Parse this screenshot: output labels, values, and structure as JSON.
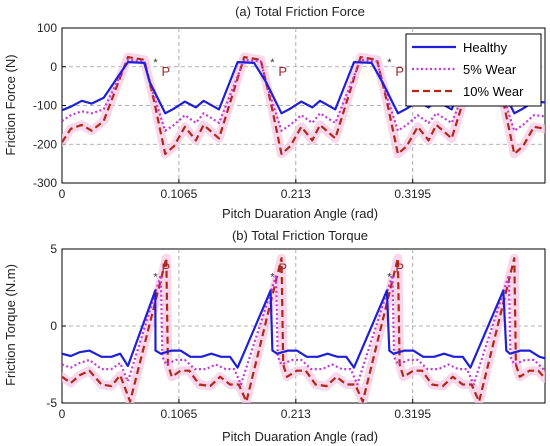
{
  "chart_data": [
    {
      "type": "line",
      "title": "(a) Total Friction Force",
      "xlabel": "Pitch Duaration Angle (rad)",
      "ylabel": "Friction Force (N)",
      "xlim": [
        0,
        0.44
      ],
      "ylim": [
        -300,
        100
      ],
      "x_ticks": [
        0,
        0.1065,
        0.213,
        0.3195
      ],
      "x_tick_labels": [
        "0",
        "0.1065",
        "0.213",
        "0.3195"
      ],
      "y_ticks": [
        100,
        0,
        -100,
        -200,
        -300
      ],
      "y_tick_labels": [
        "100",
        "0",
        "-100",
        "-200",
        "-300"
      ],
      "grid": true,
      "legend": "top-right",
      "markers": [
        {
          "label": "P",
          "x": 0.0852,
          "y": 12
        },
        {
          "label": "P",
          "x": 0.1917,
          "y": 12
        },
        {
          "label": "P",
          "x": 0.2982,
          "y": 12
        }
      ],
      "series": [
        {
          "name": "Healthy",
          "color": "#1f1fd6",
          "style": "solid",
          "x": [
            0,
            0.008,
            0.018,
            0.027,
            0.038,
            0.06,
            0.075,
            0.08,
            0.094,
            0.102,
            0.112,
            0.122,
            0.129,
            0.143,
            0.16,
            0.175,
            0.186,
            0.2,
            0.208,
            0.218,
            0.228,
            0.235,
            0.249,
            0.266,
            0.282,
            0.292,
            0.306,
            0.314,
            0.324,
            0.334,
            0.341,
            0.355,
            0.372,
            0.388,
            0.398,
            0.412,
            0.42,
            0.43,
            0.44
          ],
          "y": [
            -112,
            -103,
            -88,
            -95,
            -80,
            12,
            10,
            -40,
            -120,
            -108,
            -90,
            -105,
            -88,
            -110,
            12,
            10,
            -40,
            -120,
            -108,
            -90,
            -105,
            -88,
            -110,
            12,
            10,
            -40,
            -120,
            -108,
            -90,
            -105,
            -88,
            -110,
            12,
            10,
            -40,
            -120,
            -108,
            -90,
            -92
          ]
        },
        {
          "name": "5% Wear",
          "color": "#c43ad6",
          "style": "dotted",
          "x": [
            0,
            0.008,
            0.018,
            0.027,
            0.038,
            0.06,
            0.075,
            0.082,
            0.094,
            0.102,
            0.112,
            0.122,
            0.129,
            0.143,
            0.166,
            0.181,
            0.188,
            0.2,
            0.208,
            0.218,
            0.228,
            0.235,
            0.249,
            0.272,
            0.287,
            0.294,
            0.306,
            0.314,
            0.324,
            0.334,
            0.341,
            0.355,
            0.378,
            0.393,
            0.4,
            0.412,
            0.42,
            0.43,
            0.44
          ],
          "y": [
            -140,
            -125,
            -115,
            -120,
            -110,
            18,
            14,
            -60,
            -165,
            -150,
            -125,
            -145,
            -120,
            -145,
            18,
            14,
            -60,
            -165,
            -150,
            -125,
            -145,
            -120,
            -145,
            18,
            14,
            -60,
            -165,
            -150,
            -125,
            -145,
            -120,
            -145,
            18,
            14,
            -60,
            -165,
            -150,
            -125,
            -128
          ]
        },
        {
          "name": "10% Wear",
          "color": "#b0281a",
          "style": "dashed",
          "x": [
            0,
            0.008,
            0.018,
            0.027,
            0.038,
            0.06,
            0.075,
            0.084,
            0.094,
            0.102,
            0.112,
            0.122,
            0.129,
            0.143,
            0.166,
            0.181,
            0.19,
            0.2,
            0.208,
            0.218,
            0.228,
            0.235,
            0.249,
            0.272,
            0.287,
            0.296,
            0.306,
            0.314,
            0.324,
            0.334,
            0.341,
            0.355,
            0.378,
            0.393,
            0.402,
            0.412,
            0.42,
            0.43,
            0.44
          ],
          "y": [
            -195,
            -160,
            -150,
            -165,
            -140,
            25,
            18,
            -90,
            -225,
            -205,
            -155,
            -190,
            -150,
            -185,
            25,
            18,
            -90,
            -225,
            -205,
            -155,
            -190,
            -150,
            -185,
            25,
            18,
            -90,
            -225,
            -205,
            -155,
            -190,
            -150,
            -185,
            25,
            18,
            -90,
            -225,
            -205,
            -155,
            -160
          ]
        }
      ]
    },
    {
      "type": "line",
      "title": "(b) Total Friction Torque",
      "xlabel": "Pitch Duaration Angle (rad)",
      "ylabel": "Friction Torque (N.m)",
      "xlim": [
        0,
        0.44
      ],
      "ylim": [
        -5,
        5
      ],
      "x_ticks": [
        0,
        0.1065,
        0.213,
        0.3195
      ],
      "x_tick_labels": [
        "0",
        "0.1065",
        "0.213",
        "0.3195"
      ],
      "y_ticks": [
        5,
        0,
        -5
      ],
      "y_tick_labels": [
        "5",
        "0",
        "-5"
      ],
      "grid": true,
      "markers": [
        {
          "label": "P",
          "x": 0.0852,
          "y": 3.2
        },
        {
          "label": "P",
          "x": 0.1917,
          "y": 3.2
        },
        {
          "label": "P",
          "x": 0.2982,
          "y": 3.2
        }
      ],
      "series": [
        {
          "name": "Healthy",
          "color": "#1f1fd6",
          "style": "solid",
          "x": [
            0,
            0.008,
            0.016,
            0.025,
            0.036,
            0.045,
            0.053,
            0.06,
            0.085,
            0.0852,
            0.09,
            0.1,
            0.108,
            0.117,
            0.127,
            0.136,
            0.145,
            0.153,
            0.16,
            0.19,
            0.1917,
            0.196,
            0.206,
            0.214,
            0.223,
            0.233,
            0.242,
            0.251,
            0.259,
            0.266,
            0.296,
            0.2982,
            0.302,
            0.312,
            0.32,
            0.329,
            0.339,
            0.348,
            0.357,
            0.365,
            0.372,
            0.402,
            0.4047,
            0.408,
            0.418,
            0.426,
            0.435,
            0.44
          ],
          "y": [
            -1.8,
            -1.95,
            -1.7,
            -1.6,
            -2.0,
            -2.0,
            -1.8,
            -2.6,
            2.3,
            -1.6,
            -1.8,
            -1.6,
            -1.6,
            -2.0,
            -2.0,
            -1.8,
            -2.0,
            -2.0,
            -2.7,
            2.3,
            -1.6,
            -1.8,
            -1.6,
            -1.6,
            -2.0,
            -2.0,
            -1.8,
            -2.0,
            -2.0,
            -2.7,
            2.3,
            -1.6,
            -1.8,
            -1.6,
            -1.6,
            -2.0,
            -2.0,
            -1.8,
            -2.0,
            -2.0,
            -2.7,
            2.3,
            -1.6,
            -1.8,
            -1.6,
            -1.6,
            -2.0,
            -2.1
          ]
        },
        {
          "name": "5% Wear",
          "color": "#c43ad6",
          "style": "dotted",
          "x": [
            0,
            0.008,
            0.016,
            0.025,
            0.036,
            0.045,
            0.053,
            0.06,
            0.09,
            0.0915,
            0.095,
            0.104,
            0.112,
            0.121,
            0.131,
            0.14,
            0.149,
            0.157,
            0.163,
            0.195,
            0.1965,
            0.2,
            0.21,
            0.218,
            0.227,
            0.237,
            0.246,
            0.255,
            0.263,
            0.269,
            0.301,
            0.3025,
            0.306,
            0.316,
            0.324,
            0.333,
            0.343,
            0.352,
            0.361,
            0.369,
            0.375,
            0.407,
            0.4085,
            0.412,
            0.422,
            0.43,
            0.44
          ],
          "y": [
            -2.5,
            -2.7,
            -2.4,
            -2.2,
            -2.8,
            -2.8,
            -2.4,
            -3.6,
            3.3,
            -2.0,
            -2.5,
            -2.2,
            -2.2,
            -2.8,
            -2.8,
            -2.5,
            -2.8,
            -2.8,
            -3.8,
            3.3,
            -2.0,
            -2.5,
            -2.2,
            -2.2,
            -2.8,
            -2.8,
            -2.5,
            -2.8,
            -2.8,
            -3.8,
            3.3,
            -2.0,
            -2.5,
            -2.2,
            -2.2,
            -2.8,
            -2.8,
            -2.5,
            -2.8,
            -2.8,
            -3.8,
            3.3,
            -2.0,
            -2.5,
            -2.2,
            -2.2,
            -2.9
          ]
        },
        {
          "name": "10% Wear",
          "color": "#b0281a",
          "style": "dashed",
          "x": [
            0,
            0.008,
            0.016,
            0.025,
            0.036,
            0.045,
            0.053,
            0.062,
            0.095,
            0.0965,
            0.1,
            0.108,
            0.116,
            0.125,
            0.135,
            0.144,
            0.153,
            0.161,
            0.168,
            0.2,
            0.2015,
            0.205,
            0.214,
            0.222,
            0.231,
            0.241,
            0.25,
            0.259,
            0.267,
            0.274,
            0.306,
            0.3075,
            0.311,
            0.32,
            0.328,
            0.337,
            0.347,
            0.356,
            0.365,
            0.373,
            0.38,
            0.412,
            0.4135,
            0.417,
            0.426,
            0.434,
            0.44
          ],
          "y": [
            -3.3,
            -3.7,
            -3.2,
            -2.9,
            -3.8,
            -3.9,
            -3.2,
            -4.9,
            4.4,
            -2.5,
            -3.3,
            -2.9,
            -2.9,
            -3.8,
            -3.9,
            -3.3,
            -3.8,
            -3.8,
            -4.9,
            4.4,
            -2.5,
            -3.3,
            -2.9,
            -2.9,
            -3.8,
            -3.9,
            -3.3,
            -3.8,
            -3.8,
            -4.9,
            4.4,
            -2.5,
            -3.3,
            -2.9,
            -2.9,
            -3.8,
            -3.9,
            -3.3,
            -3.8,
            -3.8,
            -4.9,
            4.4,
            -2.5,
            -3.3,
            -2.9,
            -2.9,
            -3.4
          ]
        }
      ]
    }
  ]
}
